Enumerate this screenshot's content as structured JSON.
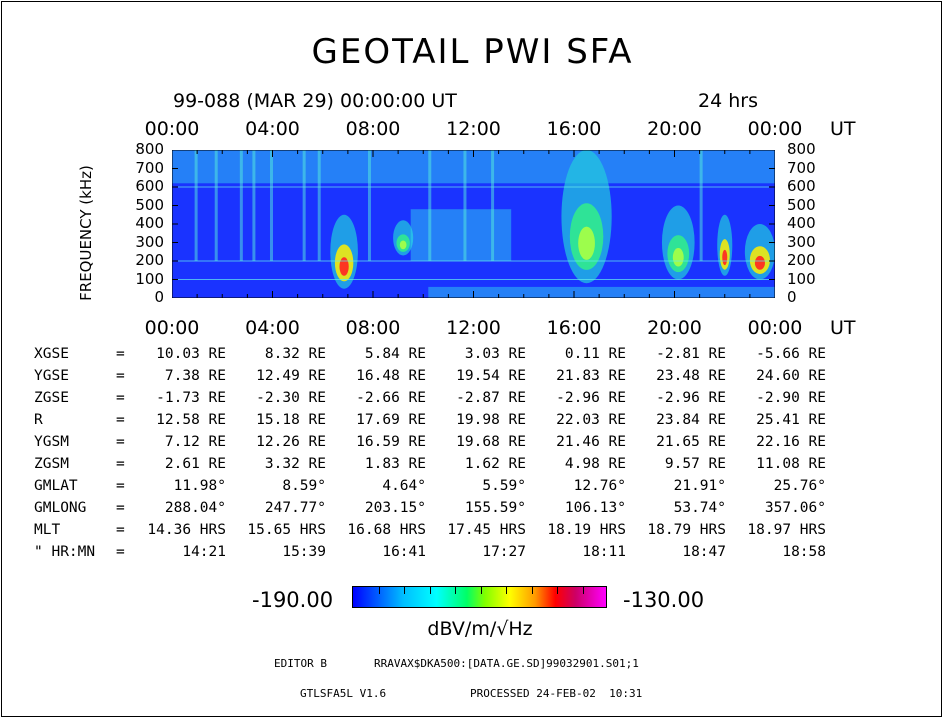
{
  "title": "GEOTAIL PWI SFA",
  "subtitle": {
    "date": "99-088 (MAR 29) 00:00:00 UT",
    "span": "24 hrs"
  },
  "time_ticks": [
    "00:00",
    "04:00",
    "08:00",
    "12:00",
    "16:00",
    "20:00",
    "00:00"
  ],
  "ut_label": "UT",
  "chart_data": {
    "type": "heatmap",
    "title": "GEOTAIL PWI SFA",
    "xlabel": "UT",
    "ylabel": "FREQUENCY (kHz)",
    "x_ticks": [
      "00:00",
      "04:00",
      "08:00",
      "12:00",
      "16:00",
      "20:00",
      "00:00"
    ],
    "xlim_hours": [
      0,
      24
    ],
    "y_ticks": [
      0,
      100,
      200,
      300,
      400,
      500,
      600,
      700,
      800
    ],
    "ylim": [
      0,
      800
    ],
    "colorbar": {
      "min": -190.0,
      "max": -130.0,
      "label": "dBV/m/√Hz",
      "min_text": "-190.00",
      "max_text": "-130.00"
    },
    "background_color": "#1a33ff",
    "emission_bands": [
      {
        "t_start": 0.0,
        "t_end": 24.0,
        "f_low": 620,
        "f_high": 800,
        "intensity": "low"
      },
      {
        "t_start": 6.3,
        "t_end": 7.4,
        "f_low": 50,
        "f_high": 450,
        "intensity": "high"
      },
      {
        "t_start": 8.8,
        "t_end": 9.6,
        "f_low": 230,
        "f_high": 420,
        "intensity": "medium"
      },
      {
        "t_start": 9.5,
        "t_end": 13.5,
        "f_low": 200,
        "f_high": 480,
        "intensity": "low"
      },
      {
        "t_start": 10.2,
        "t_end": 24.0,
        "f_low": 0,
        "f_high": 60,
        "intensity": "low"
      },
      {
        "t_start": 15.5,
        "t_end": 17.5,
        "f_low": 80,
        "f_high": 800,
        "intensity": "medium"
      },
      {
        "t_start": 19.5,
        "t_end": 20.8,
        "f_low": 100,
        "f_high": 500,
        "intensity": "medium"
      },
      {
        "t_start": 21.7,
        "t_end": 22.3,
        "f_low": 120,
        "f_high": 450,
        "intensity": "high"
      },
      {
        "t_start": 22.8,
        "t_end": 24.0,
        "f_low": 100,
        "f_high": 400,
        "intensity": "high"
      }
    ]
  },
  "ephemeris": {
    "rows": [
      {
        "label": "XGSE",
        "values": [
          "10.03 RE",
          "8.32 RE",
          "5.84 RE",
          "3.03 RE",
          "0.11 RE",
          "-2.81 RE",
          "-5.66 RE"
        ]
      },
      {
        "label": "YGSE",
        "values": [
          "7.38 RE",
          "12.49 RE",
          "16.48 RE",
          "19.54 RE",
          "21.83 RE",
          "23.48 RE",
          "24.60 RE"
        ]
      },
      {
        "label": "ZGSE",
        "values": [
          "-1.73 RE",
          "-2.30 RE",
          "-2.66 RE",
          "-2.87 RE",
          "-2.96 RE",
          "-2.96 RE",
          "-2.90 RE"
        ]
      },
      {
        "label": "R",
        "values": [
          "12.58 RE",
          "15.18 RE",
          "17.69 RE",
          "19.98 RE",
          "22.03 RE",
          "23.84 RE",
          "25.41 RE"
        ]
      },
      {
        "label": "YGSM",
        "values": [
          "7.12 RE",
          "12.26 RE",
          "16.59 RE",
          "19.68 RE",
          "21.46 RE",
          "21.65 RE",
          "22.16 RE"
        ]
      },
      {
        "label": "ZGSM",
        "values": [
          "2.61 RE",
          "3.32 RE",
          "1.83 RE",
          "1.62 RE",
          "4.98 RE",
          "9.57 RE",
          "11.08 RE"
        ]
      },
      {
        "label": "GMLAT",
        "values": [
          "11.98°",
          "8.59°",
          "4.64°",
          "5.59°",
          "12.76°",
          "21.91°",
          "25.76°"
        ]
      },
      {
        "label": "GMLONG",
        "values": [
          "288.04°",
          "247.77°",
          "203.15°",
          "155.59°",
          "106.13°",
          "53.74°",
          "357.06°"
        ]
      },
      {
        "label": "MLT",
        "values": [
          "14.36 HRS",
          "15.65 HRS",
          "16.68 HRS",
          "17.45 HRS",
          "18.19 HRS",
          "18.79 HRS",
          "18.97 HRS"
        ]
      },
      {
        "label": "\" HR:MN",
        "values": [
          "14:21",
          "15:39",
          "16:41",
          "17:27",
          "18:11",
          "18:47",
          "18:58"
        ]
      }
    ]
  },
  "footer": {
    "editor": "EDITOR B",
    "path": "RRAVAX$DKA500:[DATA.GE.SD]99032901.S01;1",
    "version": "GTLSFA5L V1.6",
    "processed": "PROCESSED 24-FEB-02  10:31"
  }
}
